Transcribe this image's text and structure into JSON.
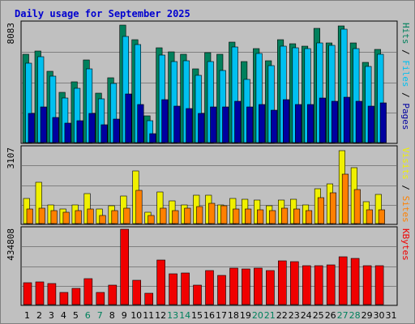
{
  "chart_data": {
    "type": "bar",
    "title": "Daily usage for September 2025",
    "categories": [
      "1",
      "2",
      "3",
      "4",
      "5",
      "6",
      "7",
      "8",
      "9",
      "10",
      "11",
      "12",
      "13",
      "14",
      "15",
      "16",
      "17",
      "18",
      "19",
      "20",
      "21",
      "22",
      "23",
      "24",
      "25",
      "26",
      "27",
      "28",
      "29",
      "30",
      "31"
    ],
    "weekend_days": [
      "6",
      "7",
      "13",
      "14",
      "20",
      "21",
      "27",
      "28"
    ],
    "panels": {
      "pages_files_hits": {
        "ymax_label": "8083",
        "ymax": 8083,
        "legend": [
          "Pages",
          "Files",
          "Hits"
        ],
        "series": [
          {
            "name": "Hits",
            "color": "#00805c",
            "values": [
              5980,
              6230,
              4860,
              3400,
              4110,
              5610,
              3340,
              4400,
              8000,
              6960,
              1840,
              6440,
              6180,
              5980,
              5010,
              6110,
              6010,
              6830,
              5500,
              6360,
              5580,
              7010,
              6690,
              6570,
              7730,
              6790,
              7920,
              6750,
              5440,
              6300,
              0
            ]
          },
          {
            "name": "Files",
            "color": "#00c0f0",
            "values": [
              5370,
              5850,
              4490,
              3030,
              3660,
              4980,
              2960,
              4030,
              7200,
              6650,
              1500,
              5950,
              5480,
              5580,
              4590,
              5480,
              4890,
              6510,
              4300,
              6040,
              5240,
              6540,
              6410,
              6390,
              6790,
              6600,
              7720,
              6370,
              5180,
              5970,
              0
            ]
          },
          {
            "name": "Pages",
            "color": "#0000a0",
            "values": [
              2000,
              2400,
              1700,
              1300,
              1500,
              2000,
              1200,
              1600,
              3300,
              2600,
              600,
              2900,
              2500,
              2300,
              2000,
              2400,
              2400,
              2800,
              2400,
              2600,
              2200,
              2900,
              2600,
              2600,
              3000,
              2800,
              3100,
              2800,
              2500,
              2700,
              0
            ]
          }
        ]
      },
      "sites_visits": {
        "ymax_label": "3107",
        "ymax": 3107,
        "legend": [
          "Sites",
          "Visits"
        ],
        "series": [
          {
            "name": "Visits",
            "color": "#f0f000",
            "values": [
              1040,
              1690,
              760,
              610,
              760,
              1240,
              600,
              720,
              1150,
              2170,
              480,
              1290,
              920,
              770,
              1180,
              1180,
              760,
              1020,
              1000,
              980,
              720,
              970,
              990,
              770,
              1430,
              1640,
              3020,
              2310,
              890,
              1190,
              0
            ]
          },
          {
            "name": "Sites",
            "color": "#ff8000",
            "values": [
              590,
              640,
              550,
              480,
              540,
              610,
              340,
              540,
              640,
              1370,
              320,
              650,
              550,
              650,
              700,
              820,
              720,
              590,
              590,
              570,
              550,
              650,
              600,
              550,
              1070,
              1270,
              2040,
              1400,
              560,
              580,
              0
            ]
          }
        ]
      },
      "kbytes": {
        "ymax_label": "434808",
        "ymax": 434808,
        "legend": [
          "KBytes"
        ],
        "series": [
          {
            "name": "KBytes",
            "color": "#f00000",
            "values": [
              126000,
              130000,
              123000,
              68000,
              93000,
              151000,
              68000,
              110000,
              434808,
              142000,
              65000,
              255000,
              176000,
              182000,
              112000,
              196000,
              166000,
              210000,
              206000,
              210000,
              196000,
              253000,
              250000,
              223000,
              225000,
              230000,
              274000,
              267000,
              223000,
              225000,
              0
            ]
          }
        ]
      }
    }
  }
}
